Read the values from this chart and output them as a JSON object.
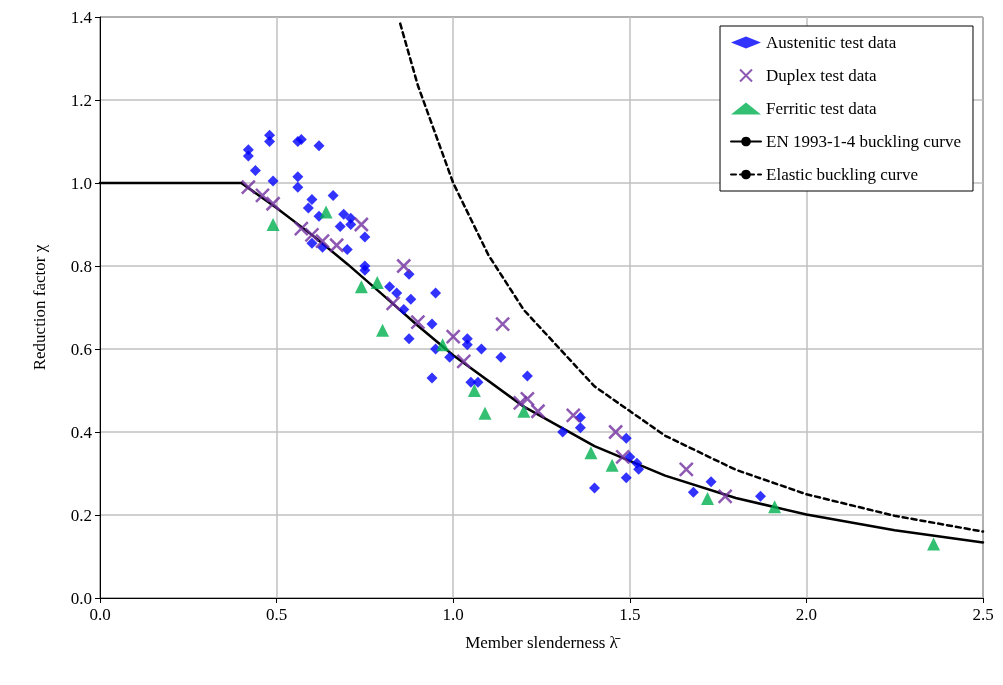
{
  "chart_data": {
    "type": "scatter",
    "xlabel": "Member slenderness λ̄",
    "ylabel": "Reduction factor χ",
    "xlim": [
      0,
      2.5
    ],
    "xticks": [
      {
        "value": 0,
        "label": "0.0"
      },
      {
        "value": 0.5,
        "label": "0.5"
      },
      {
        "value": 1,
        "label": "1.0"
      },
      {
        "value": 1.5,
        "label": "1.5"
      },
      {
        "value": 2,
        "label": "2.0"
      },
      {
        "value": 2.5,
        "label": "2.5"
      }
    ],
    "ylim": [
      0,
      1.4
    ],
    "yticks": [
      {
        "value": 0,
        "label": "0.0"
      },
      {
        "value": 0.2,
        "label": "0.2"
      },
      {
        "value": 0.4,
        "label": "0.4"
      },
      {
        "value": 0.6,
        "label": "0.6"
      },
      {
        "value": 0.8,
        "label": "0.8"
      },
      {
        "value": 1,
        "label": "1.0"
      },
      {
        "value": 1.2,
        "label": "1.2"
      },
      {
        "value": 1.4,
        "label": "1.4"
      }
    ],
    "grid": true,
    "legend": "top right",
    "series": [
      {
        "name": "Austenitic test data",
        "marker": "diamond",
        "color": "#0000ff",
        "x": [
          0.48,
          0.48,
          0.42,
          0.42,
          0.44,
          0.57,
          0.56,
          0.62,
          0.49,
          0.56,
          0.56,
          0.6,
          0.59,
          0.62,
          0.66,
          0.69,
          0.71,
          0.68,
          0.71,
          0.6,
          0.63,
          0.7,
          0.75,
          0.75,
          0.75,
          0.82,
          0.84,
          0.88,
          0.86,
          0.875,
          0.95,
          0.875,
          0.94,
          0.95,
          0.94,
          0.99,
          1.04,
          1.04,
          1.08,
          1.135,
          1.05,
          1.07,
          1.21,
          1.31,
          1.36,
          1.36,
          1.49,
          1.5,
          1.52,
          1.525,
          1.49,
          1.4,
          1.68,
          1.73,
          1.87
        ],
        "values": [
          1.115,
          1.1,
          1.08,
          1.065,
          1.03,
          1.105,
          1.1,
          1.09,
          1.005,
          1.015,
          0.99,
          0.96,
          0.94,
          0.92,
          0.97,
          0.925,
          0.915,
          0.895,
          0.9,
          0.855,
          0.845,
          0.84,
          0.87,
          0.8,
          0.79,
          0.75,
          0.735,
          0.72,
          0.695,
          0.78,
          0.735,
          0.625,
          0.66,
          0.6,
          0.53,
          0.58,
          0.625,
          0.61,
          0.6,
          0.58,
          0.52,
          0.52,
          0.535,
          0.4,
          0.435,
          0.41,
          0.385,
          0.34,
          0.325,
          0.31,
          0.29,
          0.265,
          0.255,
          0.28,
          0.245
        ]
      },
      {
        "name": "Duplex test data",
        "marker": "cross",
        "color": "#7030a0",
        "x": [
          0.42,
          0.46,
          0.49,
          0.57,
          0.6,
          0.63,
          0.67,
          0.74,
          0.86,
          0.83,
          0.9,
          1.0,
          1.03,
          1.14,
          1.19,
          1.21,
          1.24,
          1.34,
          1.46,
          1.48,
          1.66,
          1.77
        ],
        "values": [
          0.99,
          0.97,
          0.95,
          0.89,
          0.875,
          0.86,
          0.85,
          0.9,
          0.8,
          0.71,
          0.665,
          0.63,
          0.57,
          0.66,
          0.47,
          0.48,
          0.45,
          0.44,
          0.4,
          0.34,
          0.31,
          0.245
        ]
      },
      {
        "name": "Ferritic test data",
        "marker": "triangle",
        "color": "#00b050",
        "x": [
          0.49,
          0.64,
          0.74,
          0.785,
          0.8,
          0.97,
          1.06,
          1.09,
          1.2,
          1.39,
          1.45,
          1.72,
          1.91,
          2.36
        ],
        "values": [
          0.9,
          0.93,
          0.75,
          0.76,
          0.645,
          0.61,
          0.5,
          0.445,
          0.45,
          0.35,
          0.32,
          0.24,
          0.22,
          0.13
        ]
      },
      {
        "name": "EN 1993-1-4 buckling curve",
        "type": "line",
        "marker": "none",
        "line_style": "solid",
        "color": "#000000",
        "x": [
          0,
          0.4,
          0.5,
          0.6,
          0.7,
          0.8,
          0.9,
          1.0,
          1.2,
          1.4,
          1.6,
          1.8,
          2.0,
          2.25,
          2.5
        ],
        "values": [
          1,
          1,
          0.94,
          0.875,
          0.805,
          0.731,
          0.656,
          0.585,
          0.461,
          0.366,
          0.295,
          0.241,
          0.201,
          0.163,
          0.134
        ]
      },
      {
        "name": "Elastic buckling curve",
        "type": "line",
        "marker": "none",
        "line_style": "dashed",
        "color": "#000000",
        "x": [
          0.85,
          0.9,
          1.0,
          1.1,
          1.2,
          1.4,
          1.6,
          1.8,
          2.0,
          2.25,
          2.5
        ],
        "values": [
          1.384,
          1.235,
          1.0,
          0.826,
          0.694,
          0.51,
          0.391,
          0.309,
          0.25,
          0.198,
          0.16
        ]
      }
    ]
  }
}
